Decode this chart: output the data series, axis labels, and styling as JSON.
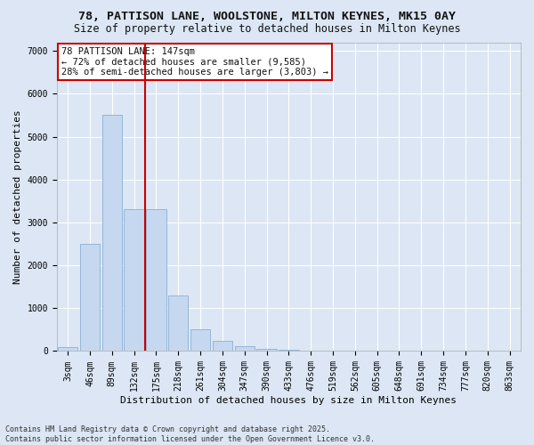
{
  "title_line1": "78, PATTISON LANE, WOOLSTONE, MILTON KEYNES, MK15 0AY",
  "title_line2": "Size of property relative to detached houses in Milton Keynes",
  "xlabel": "Distribution of detached houses by size in Milton Keynes",
  "ylabel": "Number of detached properties",
  "categories": [
    "3sqm",
    "46sqm",
    "89sqm",
    "132sqm",
    "175sqm",
    "218sqm",
    "261sqm",
    "304sqm",
    "347sqm",
    "390sqm",
    "433sqm",
    "476sqm",
    "519sqm",
    "562sqm",
    "605sqm",
    "648sqm",
    "691sqm",
    "734sqm",
    "777sqm",
    "820sqm",
    "863sqm"
  ],
  "values": [
    100,
    2500,
    5500,
    3300,
    3300,
    1300,
    500,
    230,
    120,
    60,
    30,
    15,
    5,
    2,
    0,
    0,
    0,
    0,
    0,
    0,
    0
  ],
  "bar_color": "#c5d8ef",
  "bar_edge_color": "#8ab0d4",
  "bar_width": 0.9,
  "vline_color": "#cc0000",
  "annotation_line1": "78 PATTISON LANE: 147sqm",
  "annotation_line2": "← 72% of detached houses are smaller (9,585)",
  "annotation_line3": "28% of semi-detached houses are larger (3,803) →",
  "ylim": [
    0,
    7200
  ],
  "yticks": [
    0,
    1000,
    2000,
    3000,
    4000,
    5000,
    6000,
    7000
  ],
  "bg_color": "#dce6f4",
  "plot_bg_color": "#dce6f4",
  "grid_color": "#ffffff",
  "footer_line1": "Contains HM Land Registry data © Crown copyright and database right 2025.",
  "footer_line2": "Contains public sector information licensed under the Open Government Licence v3.0.",
  "title_fontsize": 9.5,
  "subtitle_fontsize": 8.5,
  "axis_label_fontsize": 8,
  "tick_fontsize": 7,
  "annotation_fontsize": 7.5,
  "footer_fontsize": 6
}
